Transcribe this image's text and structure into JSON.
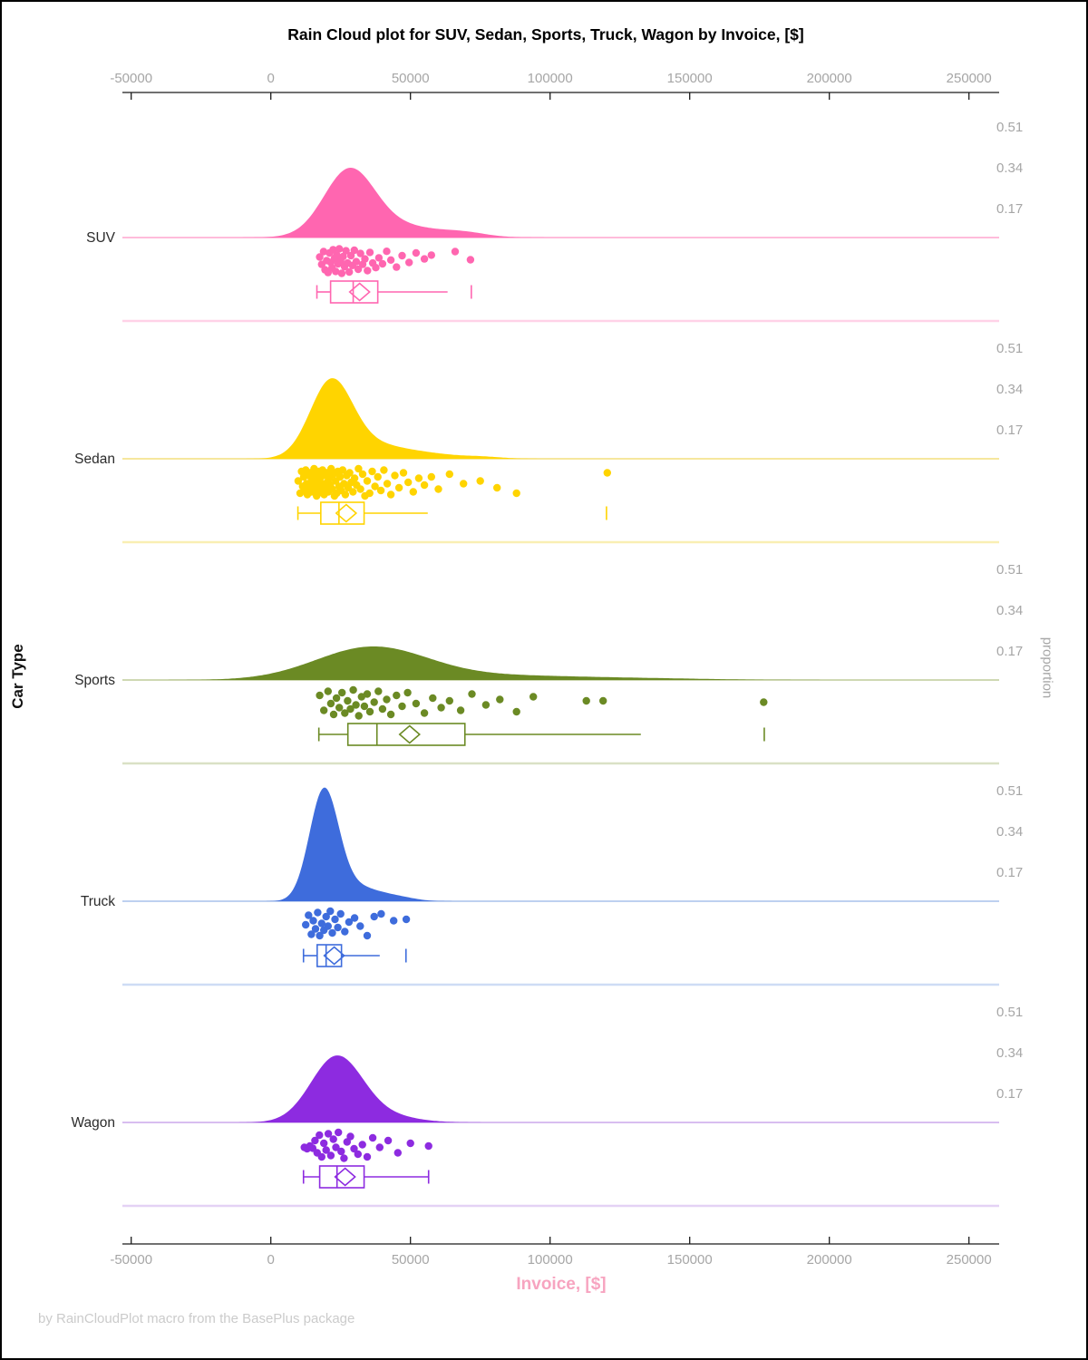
{
  "title": "Rain Cloud plot for SUV, Sedan, Sports, Truck, Wagon by Invoice, [$]",
  "footer": "by RainCloudPlot macro from the BasePlus package",
  "x_axis": {
    "label": "Invoice, [$]",
    "label_color": "#F7A4C0",
    "tick_values": [
      -50000,
      0,
      50000,
      100000,
      150000,
      200000,
      250000
    ],
    "tick_labels": [
      "-50000",
      "0",
      "50000",
      "100000",
      "150000",
      "200000",
      "250000"
    ],
    "tick_label_color": "#A6A6A6"
  },
  "y_axis": {
    "label": "Car Type"
  },
  "right_axis": {
    "label": "proportion",
    "tick_values": [
      0.51,
      0.34,
      0.17
    ],
    "tick_labels": [
      "0.51",
      "0.34",
      "0.17"
    ],
    "tick_label_color": "#A6A6A6"
  },
  "chart_data": {
    "type": "raincloud (half-violin density + strip scatter + box plot per category)",
    "value_unit": "USD",
    "x_range": [
      -50000,
      250000
    ],
    "grid": false,
    "categories": [
      "SUV",
      "Sedan",
      "Sports",
      "Truck",
      "Wagon"
    ],
    "series": [
      {
        "name": "SUV",
        "color": "#FF66B0",
        "baseline_line_color": "#FFA6CF",
        "separator_color": "#FFD2E7",
        "box": {
          "whisker_low": 16500,
          "q1": 21400,
          "median": 29500,
          "q3": 38300,
          "whisker_high": 63300,
          "mean": 31800,
          "outliers": [
            71800
          ]
        },
        "density_mixture": [
          [
            28000,
            9000,
            0.26
          ],
          [
            44000,
            16000,
            0.05
          ],
          [
            70000,
            7500,
            0.013
          ]
        ],
        "points": [
          [
            17500,
            0.35
          ],
          [
            18200,
            0.62
          ],
          [
            18900,
            0.15
          ],
          [
            19400,
            0.82
          ],
          [
            20000,
            0.48
          ],
          [
            20500,
            0.92
          ],
          [
            21000,
            0.2
          ],
          [
            21500,
            0.55
          ],
          [
            21900,
            0.75
          ],
          [
            22300,
            0.08
          ],
          [
            22800,
            0.4
          ],
          [
            23200,
            0.88
          ],
          [
            23600,
            0.28
          ],
          [
            24100,
            0.6
          ],
          [
            24500,
            0.05
          ],
          [
            25000,
            0.5
          ],
          [
            25400,
            0.95
          ],
          [
            25900,
            0.33
          ],
          [
            26400,
            0.7
          ],
          [
            26900,
            0.12
          ],
          [
            27500,
            0.57
          ],
          [
            28100,
            0.9
          ],
          [
            28700,
            0.3
          ],
          [
            29300,
            0.66
          ],
          [
            29900,
            0.1
          ],
          [
            30600,
            0.52
          ],
          [
            31300,
            0.8
          ],
          [
            32100,
            0.22
          ],
          [
            32900,
            0.62
          ],
          [
            33700,
            0.42
          ],
          [
            34600,
            0.85
          ],
          [
            35500,
            0.18
          ],
          [
            36500,
            0.57
          ],
          [
            37600,
            0.74
          ],
          [
            38700,
            0.38
          ],
          [
            40000,
            0.6
          ],
          [
            41500,
            0.14
          ],
          [
            43000,
            0.46
          ],
          [
            45000,
            0.72
          ],
          [
            47000,
            0.3
          ],
          [
            49500,
            0.55
          ],
          [
            52000,
            0.2
          ],
          [
            55000,
            0.42
          ],
          [
            57500,
            0.28
          ],
          [
            66000,
            0.15
          ],
          [
            71500,
            0.45
          ]
        ]
      },
      {
        "name": "Sedan",
        "color": "#FFD400",
        "baseline_line_color": "#F3DF7D",
        "separator_color": "#F9EFB3",
        "box": {
          "whisker_low": 9700,
          "q1": 17900,
          "median": 24400,
          "q3": 33400,
          "whisker_high": 56200,
          "mean": 27000,
          "outliers": [
            120200
          ]
        },
        "density_mixture": [
          [
            21500,
            7500,
            0.3
          ],
          [
            34000,
            12000,
            0.06
          ],
          [
            56000,
            11000,
            0.018
          ],
          [
            76000,
            7000,
            0.007
          ]
        ],
        "points": [
          [
            9800,
            0.45
          ],
          [
            10500,
            0.9
          ],
          [
            11000,
            0.1
          ],
          [
            11400,
            0.65
          ],
          [
            11800,
            0.3
          ],
          [
            12200,
            0.8
          ],
          [
            12500,
            0.05
          ],
          [
            12800,
            0.55
          ],
          [
            13100,
            0.95
          ],
          [
            13400,
            0.25
          ],
          [
            13700,
            0.7
          ],
          [
            14000,
            0.15
          ],
          [
            14300,
            0.5
          ],
          [
            14600,
            0.85
          ],
          [
            14900,
            0.35
          ],
          [
            15200,
            0.6
          ],
          [
            15500,
            0.0
          ],
          [
            15800,
            0.75
          ],
          [
            16100,
            0.2
          ],
          [
            16400,
            1.0
          ],
          [
            16700,
            0.45
          ],
          [
            17000,
            0.9
          ],
          [
            17300,
            0.1
          ],
          [
            17600,
            0.65
          ],
          [
            17900,
            0.3
          ],
          [
            18200,
            0.8
          ],
          [
            18500,
            0.05
          ],
          [
            18800,
            0.55
          ],
          [
            19100,
            0.95
          ],
          [
            19400,
            0.25
          ],
          [
            19700,
            0.7
          ],
          [
            20000,
            0.15
          ],
          [
            20300,
            0.5
          ],
          [
            20600,
            0.85
          ],
          [
            21000,
            0.35
          ],
          [
            21300,
            0.6
          ],
          [
            21600,
            0.0
          ],
          [
            22000,
            0.75
          ],
          [
            22400,
            0.2
          ],
          [
            22800,
            1.0
          ],
          [
            23200,
            0.45
          ],
          [
            23600,
            0.9
          ],
          [
            24000,
            0.1
          ],
          [
            24400,
            0.65
          ],
          [
            24800,
            0.3
          ],
          [
            25200,
            0.8
          ],
          [
            25700,
            0.05
          ],
          [
            26200,
            0.55
          ],
          [
            26700,
            0.95
          ],
          [
            27200,
            0.25
          ],
          [
            27700,
            0.7
          ],
          [
            28200,
            0.15
          ],
          [
            28800,
            0.5
          ],
          [
            29400,
            0.85
          ],
          [
            30000,
            0.35
          ],
          [
            30700,
            0.6
          ],
          [
            31400,
            0.0
          ],
          [
            32100,
            0.75
          ],
          [
            32900,
            0.2
          ],
          [
            33700,
            1.0
          ],
          [
            34500,
            0.45
          ],
          [
            35400,
            0.9
          ],
          [
            36300,
            0.1
          ],
          [
            37300,
            0.65
          ],
          [
            38300,
            0.3
          ],
          [
            39400,
            0.8
          ],
          [
            40500,
            0.05
          ],
          [
            41700,
            0.55
          ],
          [
            43000,
            0.95
          ],
          [
            44400,
            0.25
          ],
          [
            45900,
            0.7
          ],
          [
            47500,
            0.15
          ],
          [
            49200,
            0.5
          ],
          [
            51000,
            0.85
          ],
          [
            53000,
            0.35
          ],
          [
            55000,
            0.6
          ],
          [
            57500,
            0.3
          ],
          [
            60000,
            0.75
          ],
          [
            64000,
            0.2
          ],
          [
            69000,
            0.55
          ],
          [
            75000,
            0.45
          ],
          [
            81000,
            0.7
          ],
          [
            88000,
            0.9
          ],
          [
            120500,
            0.15
          ]
        ]
      },
      {
        "name": "Sports",
        "color": "#6B8A24",
        "baseline_line_color": "#BFCB9A",
        "separator_color": "#DAE1C5",
        "box": {
          "whisker_low": 17200,
          "q1": 27600,
          "median": 38000,
          "q3": 69500,
          "whisker_high": 132500,
          "mean": 49700,
          "outliers": [
            176700
          ]
        },
        "density_mixture": [
          [
            36000,
            20000,
            0.135
          ],
          [
            85000,
            30000,
            0.018
          ],
          [
            140000,
            22000,
            0.0045
          ]
        ],
        "points": [
          [
            17500,
            0.2
          ],
          [
            19000,
            0.75
          ],
          [
            20500,
            0.05
          ],
          [
            21500,
            0.5
          ],
          [
            22500,
            0.9
          ],
          [
            23500,
            0.3
          ],
          [
            24500,
            0.65
          ],
          [
            25500,
            0.1
          ],
          [
            26500,
            0.85
          ],
          [
            27500,
            0.4
          ],
          [
            28500,
            0.7
          ],
          [
            29500,
            0.0
          ],
          [
            30500,
            0.55
          ],
          [
            31500,
            0.95
          ],
          [
            32500,
            0.25
          ],
          [
            33500,
            0.6
          ],
          [
            34500,
            0.15
          ],
          [
            35500,
            0.8
          ],
          [
            37000,
            0.45
          ],
          [
            38500,
            0.05
          ],
          [
            40000,
            0.7
          ],
          [
            41500,
            0.35
          ],
          [
            43000,
            0.9
          ],
          [
            45000,
            0.2
          ],
          [
            47000,
            0.6
          ],
          [
            49000,
            0.1
          ],
          [
            52000,
            0.5
          ],
          [
            55000,
            0.85
          ],
          [
            58000,
            0.3
          ],
          [
            61000,
            0.65
          ],
          [
            64000,
            0.4
          ],
          [
            68000,
            0.75
          ],
          [
            72000,
            0.15
          ],
          [
            77000,
            0.55
          ],
          [
            82000,
            0.35
          ],
          [
            88000,
            0.8
          ],
          [
            94000,
            0.25
          ],
          [
            113000,
            0.4
          ],
          [
            119000,
            0.4
          ],
          [
            176500,
            0.45
          ]
        ]
      },
      {
        "name": "Truck",
        "color": "#3E6CDC",
        "baseline_line_color": "#A9C1EB",
        "separator_color": "#CEDCF5",
        "box": {
          "whisker_low": 11700,
          "q1": 16600,
          "median": 19800,
          "q3": 25300,
          "whisker_high": 39000,
          "mean": 22700,
          "outliers": [
            48400
          ]
        },
        "density_mixture": [
          [
            19000,
            5200,
            0.45
          ],
          [
            30000,
            8000,
            0.06
          ],
          [
            45000,
            6500,
            0.016
          ]
        ],
        "points": [
          [
            12500,
            0.5
          ],
          [
            13500,
            0.15
          ],
          [
            14500,
            0.85
          ],
          [
            15200,
            0.35
          ],
          [
            16000,
            0.65
          ],
          [
            16800,
            0.05
          ],
          [
            17500,
            0.9
          ],
          [
            18200,
            0.45
          ],
          [
            19000,
            0.7
          ],
          [
            19800,
            0.2
          ],
          [
            20500,
            0.55
          ],
          [
            21300,
            0.0
          ],
          [
            22000,
            0.8
          ],
          [
            23000,
            0.3
          ],
          [
            24000,
            0.6
          ],
          [
            25000,
            0.1
          ],
          [
            26500,
            0.75
          ],
          [
            28000,
            0.4
          ],
          [
            30000,
            0.25
          ],
          [
            32000,
            0.55
          ],
          [
            34500,
            0.9
          ],
          [
            37000,
            0.2
          ],
          [
            39500,
            0.1
          ],
          [
            44000,
            0.35
          ],
          [
            48500,
            0.3
          ]
        ]
      },
      {
        "name": "Wagon",
        "color": "#8D2BE0",
        "baseline_line_color": "#CBA9EC",
        "separator_color": "#E4D2F5",
        "box": {
          "whisker_low": 11700,
          "q1": 17500,
          "median": 23700,
          "q3": 33400,
          "whisker_high": 56500,
          "mean": 26600,
          "outliers": []
        },
        "density_mixture": [
          [
            23500,
            9200,
            0.27
          ],
          [
            40000,
            11000,
            0.028
          ]
        ],
        "points": [
          [
            12000,
            0.55
          ],
          [
            13000,
            0.6
          ],
          [
            14000,
            0.5
          ],
          [
            15000,
            0.58
          ],
          [
            15800,
            0.3
          ],
          [
            16600,
            0.75
          ],
          [
            17400,
            0.1
          ],
          [
            18200,
            0.9
          ],
          [
            19000,
            0.4
          ],
          [
            19800,
            0.65
          ],
          [
            20600,
            0.05
          ],
          [
            21500,
            0.85
          ],
          [
            22400,
            0.25
          ],
          [
            23300,
            0.55
          ],
          [
            24200,
            0.0
          ],
          [
            25200,
            0.7
          ],
          [
            26200,
            0.95
          ],
          [
            27300,
            0.35
          ],
          [
            28500,
            0.15
          ],
          [
            29800,
            0.6
          ],
          [
            31200,
            0.8
          ],
          [
            32800,
            0.45
          ],
          [
            34500,
            0.9
          ],
          [
            36500,
            0.2
          ],
          [
            39000,
            0.55
          ],
          [
            42000,
            0.3
          ],
          [
            45500,
            0.75
          ],
          [
            50000,
            0.4
          ],
          [
            56500,
            0.5
          ]
        ]
      }
    ]
  }
}
